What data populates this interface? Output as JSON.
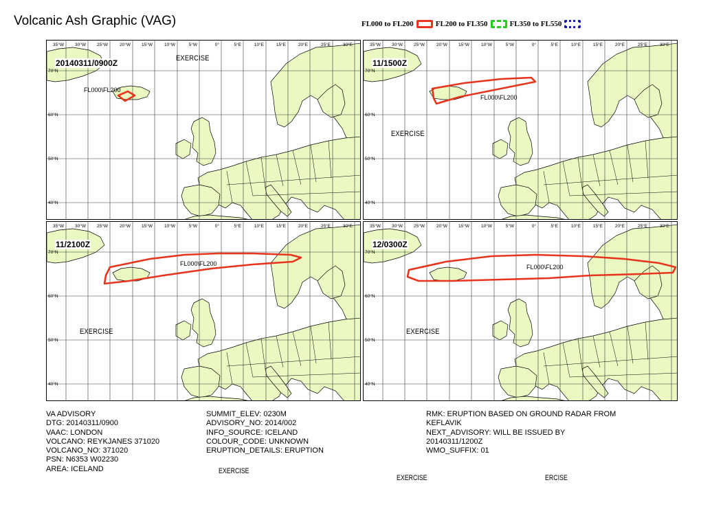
{
  "title": "Volcanic Ash Graphic (VAG)",
  "legend": [
    {
      "label": "FL000 to FL200",
      "color": "#e8341c",
      "style": "solid"
    },
    {
      "label": "FL200 to FL350",
      "color": "#22cc22",
      "style": "dashed"
    },
    {
      "label": "FL350 to FL550",
      "color": "#1a1ab8",
      "style": "dotted"
    }
  ],
  "map_labels": {
    "lon_ticks": [
      "35°W",
      "30°W",
      "25°W",
      "20°W",
      "15°W",
      "10°W",
      "5°W",
      "0°",
      "5°E",
      "10°E",
      "15°E",
      "20°E",
      "25°E",
      "30°E"
    ],
    "lat_ticks": [
      "70°N",
      "60°N",
      "50°N",
      "40°N"
    ]
  },
  "land_color": "#e9f9c1",
  "panels": [
    {
      "time": "20140311/0900Z",
      "ash_label": "FL000\\FL200",
      "exercise": "EXERCISE"
    },
    {
      "time": "11/1500Z",
      "ash_label": "FL000\\FL200",
      "exercise": "EXERCISE"
    },
    {
      "time": "11/2100Z",
      "ash_label": "FL000\\FL200",
      "exercise": "EXERCISE"
    },
    {
      "time": "12/0300Z",
      "ash_label": "FL000\\FL200",
      "exercise": "EXERCISE"
    }
  ],
  "advisory": {
    "col1": [
      "VA ADVISORY",
      "DTG: 20140311/0900",
      "VAAC: LONDON",
      "VOLCANO: REYKJANES 371020",
      "VOLCANO_NO: 371020",
      "PSN: N6353 W02230",
      "AREA: ICELAND"
    ],
    "col2": [
      "SUMMIT_ELEV: 0230M",
      "ADVISORY_NO: 2014/002",
      "INFO_SOURCE: ICELAND",
      "COLOUR_CODE: UNKNOWN",
      "ERUPTION_DETAILS: ERUPTION"
    ],
    "col3": [
      "RMK: ERUPTION BASED ON GROUND RADAR FROM",
      "KEFLAVIK",
      "NEXT_ADVISORY: WILL BE ISSUED BY",
      "20140311/1200Z",
      "WMO_SUFFIX: 01"
    ]
  },
  "footer_exercise": [
    "EXERCISE",
    "EXERCISE",
    "ERCISE"
  ]
}
